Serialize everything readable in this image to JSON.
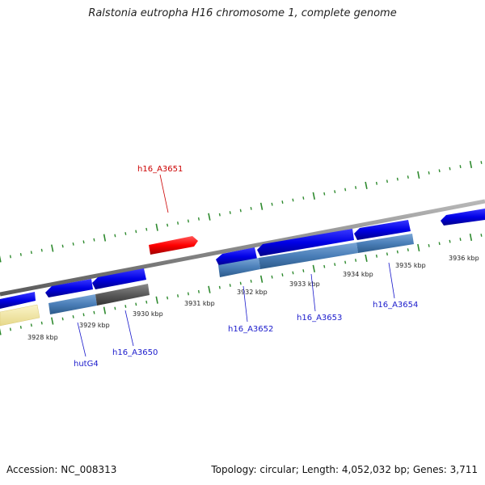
{
  "title": "Ralstonia eutropha H16 chromosome 1, complete genome",
  "footer": {
    "accession": "Accession: NC_008313",
    "stats": "Topology: circular; Length: 4,052,032 bp; Genes: 3,711"
  },
  "colors": {
    "cds": "#0000e6",
    "cds_highlight": "#ff0000",
    "gene": "#4a7eb8",
    "gene_other": "#5a5a5a",
    "rrna": "#f3e9a8",
    "tick": "#2e8a2e",
    "backbone": "#8a8a8a",
    "label_default": "#1a1acc",
    "label_highlight": "#cc0000"
  },
  "ruler": [
    {
      "label": "3928 kbp"
    },
    {
      "label": "3929 kbp"
    },
    {
      "label": "3930 kbp"
    },
    {
      "label": "3931 kbp"
    },
    {
      "label": "3932 kbp"
    },
    {
      "label": "3933 kbp"
    },
    {
      "label": "3934 kbp"
    },
    {
      "label": "3935 kbp"
    },
    {
      "label": "3936 kbp"
    }
  ],
  "gene_labels": [
    {
      "name": "h16_A3651",
      "color": "#cc0000"
    },
    {
      "name": "hutG4",
      "color": "#1a1acc"
    },
    {
      "name": "h16_A3650",
      "color": "#1a1acc"
    },
    {
      "name": "h16_A3652",
      "color": "#1a1acc"
    },
    {
      "name": "h16_A3653",
      "color": "#1a1acc"
    },
    {
      "name": "h16_A3654",
      "color": "#1a1acc"
    }
  ]
}
